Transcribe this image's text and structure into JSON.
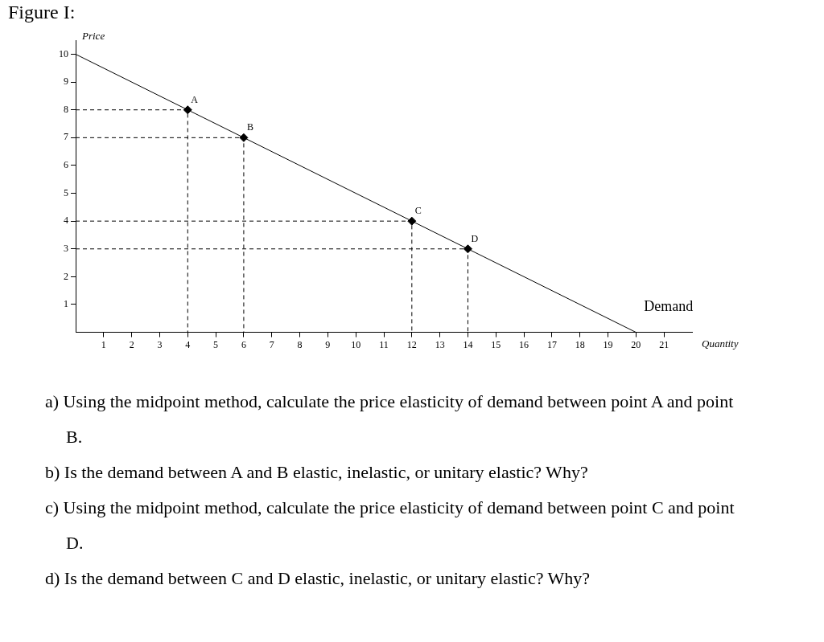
{
  "chart_data": {
    "type": "line",
    "title": "Figure I:",
    "xlabel": "Quantity",
    "ylabel": "Price",
    "xlim": [
      0,
      22
    ],
    "ylim": [
      0,
      10.5
    ],
    "xticks": [
      1,
      2,
      3,
      4,
      5,
      6,
      7,
      8,
      9,
      10,
      11,
      12,
      13,
      14,
      15,
      16,
      17,
      18,
      19,
      20,
      21
    ],
    "yticks": [
      1,
      2,
      3,
      4,
      5,
      6,
      7,
      8,
      9,
      10
    ],
    "series": [
      {
        "name": "Demand",
        "color": "#000000",
        "marker": "none",
        "line_style": "solid",
        "x": [
          0,
          20
        ],
        "values": [
          10,
          0
        ]
      },
      {
        "type": "line",
        "color": "#000000",
        "marker": "none",
        "line_style": "dashed",
        "x": [
          0,
          4,
          4
        ],
        "values": [
          8,
          8,
          0
        ]
      },
      {
        "type": "line",
        "color": "#000000",
        "marker": "none",
        "line_style": "dashed",
        "x": [
          0,
          6,
          6
        ],
        "values": [
          7,
          7,
          0
        ]
      },
      {
        "type": "line",
        "color": "#000000",
        "marker": "none",
        "line_style": "dashed",
        "x": [
          0,
          12,
          12
        ],
        "values": [
          4,
          4,
          0
        ]
      },
      {
        "type": "line",
        "color": "#000000",
        "marker": "none",
        "line_style": "dashed",
        "x": [
          0,
          14,
          14
        ],
        "values": [
          3,
          3,
          0
        ]
      },
      {
        "type": "scatter",
        "color": "#000000",
        "marker": "diamond",
        "x": [
          4,
          6,
          12,
          14
        ],
        "values": [
          8,
          7,
          4,
          3
        ]
      }
    ],
    "annotations": [
      {
        "text": "A",
        "x": 4,
        "y": 8
      },
      {
        "text": "B",
        "x": 6,
        "y": 7
      },
      {
        "text": "C",
        "x": 12,
        "y": 4
      },
      {
        "text": "D",
        "x": 14,
        "y": 3
      },
      "a)  Using the midpoint method, calculate the price elasticity of demand between point A and point B.",
      "b)  Is the demand between A and B elastic, inelastic, or unitary elastic? Why?",
      "c)  Using the midpoint method, calculate the price elasticity of demand between point C and point D.",
      "d)  Is the demand between C and D elastic, inelastic, or unitary elastic? Why?"
    ]
  }
}
